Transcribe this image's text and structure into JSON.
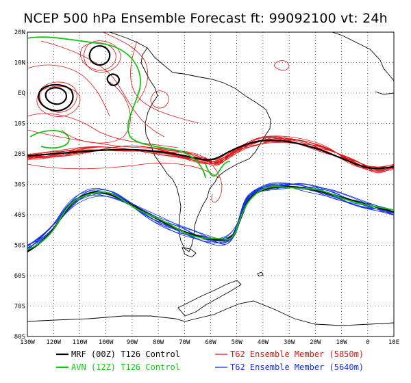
{
  "title": "NCEP 500 hPa Ensemble Forecast  ft: 99092100 vt: 24h",
  "colors": {
    "mrf": "#000000",
    "avn": "#11c611",
    "ens_5850": "#e01010",
    "ens_5640": "#1030e0",
    "coast": "#000000",
    "grid": "#000000"
  },
  "axes": {
    "lat_labels": [
      "20N",
      "10N",
      "EQ",
      "10S",
      "20S",
      "30S",
      "40S",
      "50S",
      "60S",
      "70S",
      "80S"
    ],
    "lon_labels": [
      "130W",
      "120W",
      "110W",
      "100W",
      "90W",
      "80W",
      "70W",
      "60W",
      "50W",
      "40W",
      "30W",
      "20W",
      "10W",
      "0",
      "10E"
    ]
  },
  "legend": [
    {
      "key": "mrf",
      "label": "MRF (00Z) T126 Control",
      "color": "#000000"
    },
    {
      "key": "avn",
      "label": "AVN (12Z) T126 Control",
      "color": "#11c611"
    },
    {
      "key": "ens_5850",
      "label": "T62 Ensemble Member (5850m)",
      "color": "#e01010"
    },
    {
      "key": "ens_5640",
      "label": "T62 Ensemble Member (5640m)",
      "color": "#1030e0"
    }
  ]
}
